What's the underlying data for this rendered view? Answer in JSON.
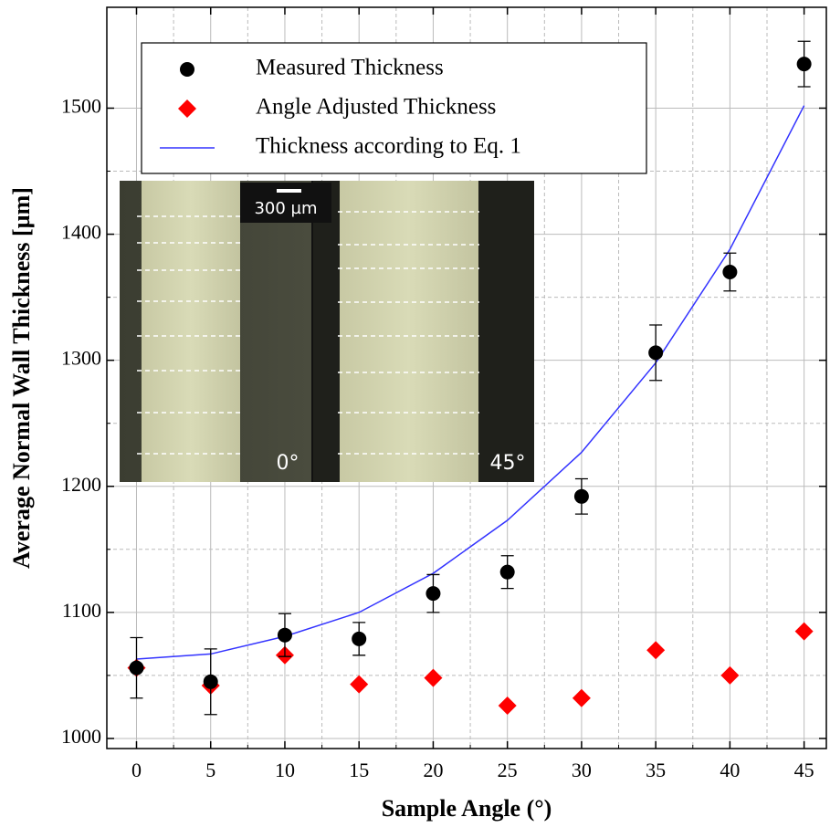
{
  "chart_data": {
    "type": "scatter-line",
    "xlabel": "Sample Angle (°)",
    "ylabel": "Average Normal Wall Thickness [µm]",
    "xlim": [
      -2,
      46.5
    ],
    "ylim": [
      992,
      1580
    ],
    "xticks": [
      0,
      5,
      10,
      15,
      20,
      25,
      30,
      35,
      40,
      45
    ],
    "yticks": [
      1000,
      1100,
      1200,
      1300,
      1400,
      1500
    ],
    "grid": true,
    "legend": "upper left",
    "x": [
      0,
      5,
      10,
      15,
      20,
      25,
      30,
      35,
      40,
      45
    ],
    "series": [
      {
        "name": "Measured Thickness",
        "kind": "errorbar",
        "marker": "circle",
        "color": "#000000",
        "values": [
          1056,
          1045,
          1082,
          1079,
          1115,
          1132,
          1192,
          1306,
          1370,
          1535
        ],
        "errors": [
          24,
          26,
          17,
          13,
          15,
          13,
          14,
          22,
          15,
          18
        ]
      },
      {
        "name": "Angle Adjusted Thickness",
        "kind": "marker",
        "marker": "diamond",
        "color": "#ff0000",
        "values": [
          1056,
          1042,
          1066,
          1043,
          1048,
          1026,
          1032,
          1070,
          1050,
          1085
        ]
      },
      {
        "name": "Thickness according to Eq. 1",
        "kind": "line",
        "color": "#3333ff",
        "values": [
          1063,
          1067,
          1081,
          1100,
          1131,
          1173,
          1227,
          1298,
          1388,
          1502
        ]
      }
    ],
    "inset": {
      "scale_bar": "300 µm",
      "left_label": "0°",
      "right_label": "45°"
    }
  }
}
